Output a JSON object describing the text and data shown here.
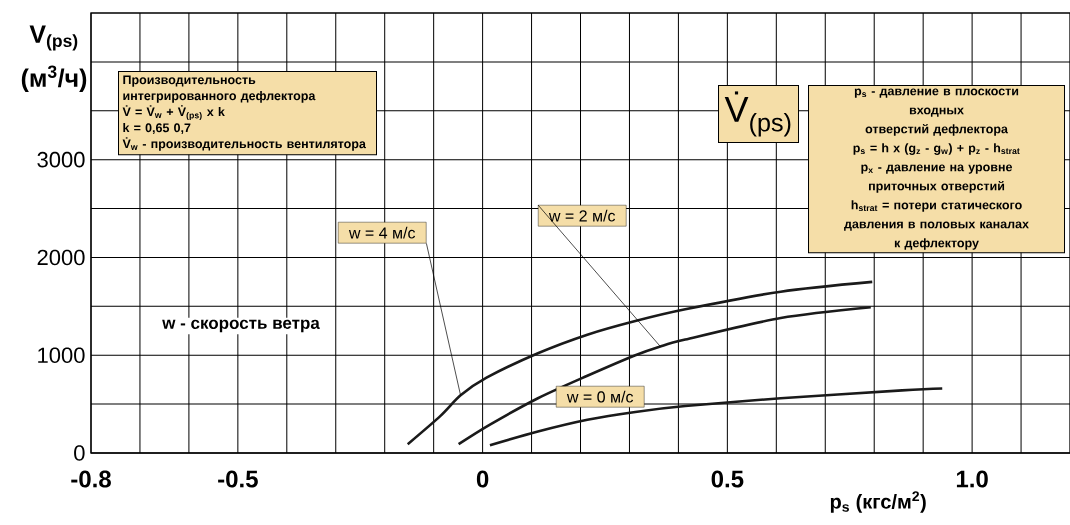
{
  "chart_data": {
    "type": "line",
    "xlabel": "p$_{s}$ (кгс/м$^{2}$)",
    "ylabel": "V$_{(ps)}$ (м$^{3}$/ч)",
    "xlim": [
      -0.8,
      1.2
    ],
    "ylim": [
      0,
      4500
    ],
    "xticks": [
      -0.8,
      {
        "value": -0.7,
        "label": null
      },
      {
        "value": -0.6,
        "label": null
      },
      -0.5,
      {
        "value": -0.4,
        "label": null
      },
      {
        "value": -0.3,
        "label": null
      },
      {
        "value": -0.2,
        "label": null
      },
      {
        "value": -0.1,
        "label": null
      },
      0,
      {
        "value": 0.1,
        "label": null
      },
      {
        "value": 0.2,
        "label": null
      },
      {
        "value": 0.3,
        "label": null
      },
      {
        "value": 0.4,
        "label": null
      },
      0.5,
      {
        "value": 0.6,
        "label": null
      },
      {
        "value": 0.7,
        "label": null
      },
      {
        "value": 0.8,
        "label": null
      },
      {
        "value": 0.9,
        "label": null
      },
      {
        "value": 1,
        "label": "1.0"
      },
      {
        "value": 1.1,
        "label": null
      }
    ],
    "yticks": [
      0,
      {
        "value": 500,
        "label": null
      },
      1000,
      {
        "value": 1500,
        "label": null
      },
      2000,
      {
        "value": 2500,
        "label": null
      },
      3000,
      {
        "value": 3500,
        "label": null
      },
      {
        "value": 4000,
        "label": null
      }
    ],
    "grid": true,
    "marker": "none",
    "line_style": "solid",
    "series": [
      {
        "name": "w = 4 м/с",
        "color": "#1a1a1a",
        "x": [
          -0.153,
          -0.086,
          -0.045,
          0.008,
          0.113,
          0.214,
          0.312,
          0.414,
          0.609,
          0.796
        ],
        "values": [
          90,
          380,
          590,
          770,
          1020,
          1210,
          1350,
          1470,
          1650,
          1750
        ]
      },
      {
        "name": "w = 2 м/с",
        "color": "#1a1a1a",
        "x": [
          -0.049,
          0.015,
          0.113,
          0.214,
          0.312,
          0.363,
          0.414,
          0.609,
          0.793
        ],
        "values": [
          90,
          290,
          560,
          790,
          1000,
          1090,
          1160,
          1380,
          1490
        ]
      },
      {
        "name": "w = 0 м/с",
        "color": "#1a1a1a",
        "x": [
          0.015,
          0.113,
          0.214,
          0.312,
          0.414,
          0.609,
          0.857,
          0.939
        ],
        "values": [
          80,
          220,
          340,
          420,
          480,
          560,
          640,
          660
        ]
      }
    ],
    "annotations": [
      "Производительность",
      "интегрированного дефлектора",
      "V̇ = V̇$_{w}$ + V̇$_{(ps)}$ x k",
      "k = 0,65 0,7",
      "V̇$_{w}$ - производительность вентилятора",
      "V̇$_{(ps)}$",
      "p$_{s}$ - давление в плоскости",
      "входных",
      "отверстий дефлектора",
      "p$_{s}$ = h x (g$_{z}$ - g$_{w}$) + p$_{z}$ - h$_{strat}$",
      "p$_{x}$ - давление на уровне",
      "приточных отверстий",
      "h$_{strat}$ = потери статического",
      "давления в половых каналах",
      "к дефлектору",
      "w - скорость ветра"
    ]
  }
}
